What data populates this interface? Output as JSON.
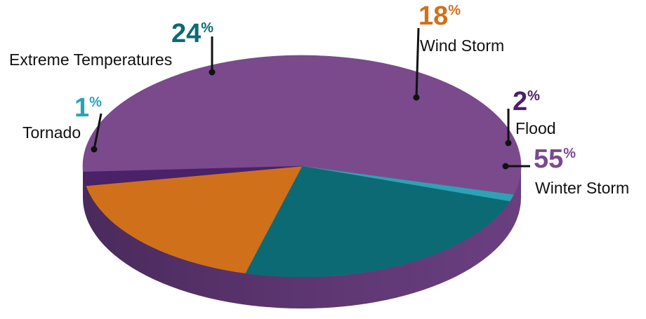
{
  "chart_data": {
    "type": "pie",
    "title": "",
    "categories": [
      "Winter Storm",
      "Tornado",
      "Extreme Temperatures",
      "Wind Storm",
      "Flood"
    ],
    "values": [
      55,
      1,
      24,
      18,
      2
    ],
    "value_labels": [
      "55",
      "1",
      "24",
      "18",
      "2"
    ],
    "percent_symbol": "%",
    "colors": [
      "#7a4a8c",
      "#2aa3b5",
      "#0c6a74",
      "#d0701a",
      "#4b2168"
    ],
    "label_colors": [
      "#7a4a8c",
      "#2aa3b5",
      "#0c6a74",
      "#d0701a",
      "#4b2168"
    ],
    "style": "3d",
    "legend": "none"
  }
}
